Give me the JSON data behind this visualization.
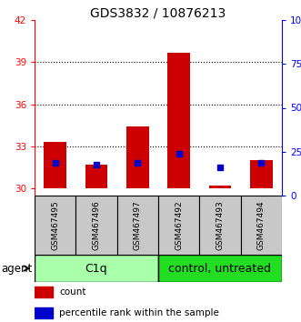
{
  "title": "GDS3832 / 10876213",
  "samples": [
    "GSM467495",
    "GSM467496",
    "GSM467497",
    "GSM467492",
    "GSM467493",
    "GSM467494"
  ],
  "count_values": [
    33.3,
    31.7,
    34.4,
    39.7,
    30.2,
    32.0
  ],
  "count_baseline": 30.0,
  "percentile_values": [
    31.8,
    31.7,
    31.8,
    32.5,
    31.5,
    31.8
  ],
  "ylim_left": [
    29.5,
    42.0
  ],
  "ylim_right": [
    0,
    100
  ],
  "yticks_left": [
    30,
    33,
    36,
    39,
    42
  ],
  "yticks_right": [
    0,
    25,
    50,
    75,
    100
  ],
  "ytick_labels_right": [
    "0",
    "25",
    "50",
    "75",
    "100%"
  ],
  "bar_color": "#CC0000",
  "percentile_color": "#0000CC",
  "background_color": "#ffffff",
  "label_area_color": "#c8c8c8",
  "c1q_color": "#aaffaa",
  "ctrl_color": "#22dd22",
  "title_fontsize": 10,
  "bar_width": 0.55
}
